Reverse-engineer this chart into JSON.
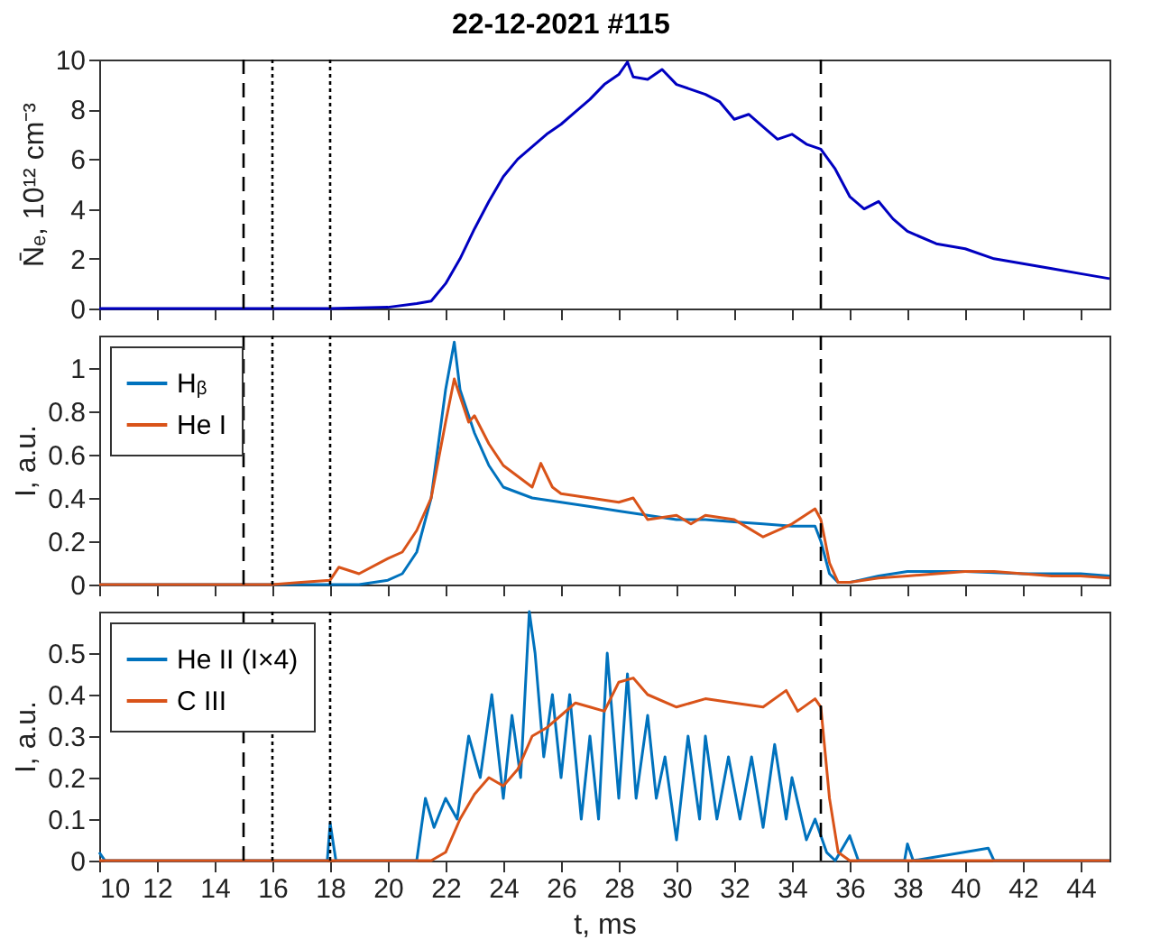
{
  "chart_data": [
    {
      "type": "line",
      "title": "22-12-2021 #115",
      "ylabel": "N̄ₑ, 10¹² cm⁻³",
      "xlim": [
        10,
        45
      ],
      "xticks": [
        10,
        12,
        14,
        16,
        18,
        20,
        22,
        24,
        26,
        28,
        30,
        32,
        34,
        36,
        38,
        40,
        42,
        44
      ],
      "ylim": [
        0,
        10
      ],
      "yticks": [
        0,
        2,
        4,
        6,
        8,
        10
      ],
      "grid": false,
      "legend": false,
      "tick_labels": "y",
      "line_style": "solid",
      "series": [
        {
          "color": "#0000c0",
          "x": [
            10,
            14,
            18,
            20,
            21,
            21.5,
            22,
            22.5,
            23,
            23.5,
            24,
            24.5,
            25,
            25.5,
            26,
            26.5,
            27,
            27.5,
            28,
            28.3,
            28.5,
            29,
            29.5,
            30,
            30.5,
            31,
            31.5,
            32,
            32.5,
            33,
            33.5,
            34,
            34.5,
            35,
            35.5,
            36,
            36.5,
            37,
            37.5,
            38,
            39,
            40,
            41,
            42,
            43,
            44,
            45
          ],
          "values": [
            0,
            0,
            0,
            0.05,
            0.2,
            0.3,
            1,
            2,
            3.2,
            4.3,
            5.3,
            6,
            6.5,
            7,
            7.4,
            7.9,
            8.4,
            9,
            9.4,
            9.9,
            9.3,
            9.2,
            9.6,
            9,
            8.8,
            8.6,
            8.3,
            7.6,
            7.8,
            7.3,
            6.8,
            7,
            6.6,
            6.4,
            5.6,
            4.5,
            4,
            4.3,
            3.6,
            3.1,
            2.6,
            2.4,
            2,
            1.8,
            1.6,
            1.4,
            1.2
          ]
        }
      ],
      "ref_lines": [
        {
          "axis": "x",
          "value": 15,
          "line_style": "dashed",
          "color": "#000000"
        },
        {
          "axis": "x",
          "value": 16,
          "line_style": "dotted",
          "color": "#000000"
        },
        {
          "axis": "x",
          "value": 18,
          "line_style": "dotted",
          "color": "#000000"
        },
        {
          "axis": "x",
          "value": 35,
          "line_style": "dashed",
          "color": "#000000"
        }
      ]
    },
    {
      "type": "line",
      "ylabel": "I, a.u.",
      "xlim": [
        10,
        45
      ],
      "xticks": [
        10,
        12,
        14,
        16,
        18,
        20,
        22,
        24,
        26,
        28,
        30,
        32,
        34,
        36,
        38,
        40,
        42,
        44
      ],
      "ylim": [
        0,
        1.15
      ],
      "yticks": [
        0,
        0.2,
        0.4,
        0.6,
        0.8,
        1
      ],
      "grid": false,
      "legend": "top left",
      "tick_labels": "y",
      "line_style": "solid",
      "series": [
        {
          "name": "Hᵦ",
          "color": "#0072bd",
          "x": [
            10,
            19,
            20,
            20.5,
            21,
            21.5,
            22,
            22.3,
            22.5,
            23,
            23.5,
            24,
            25,
            26,
            27,
            28,
            29,
            30,
            31,
            32,
            33,
            34,
            34.8,
            35,
            35.3,
            35.6,
            36,
            37,
            38,
            39,
            40,
            42,
            44,
            45
          ],
          "values": [
            0,
            0,
            0.02,
            0.05,
            0.15,
            0.4,
            0.9,
            1.12,
            0.9,
            0.7,
            0.55,
            0.45,
            0.4,
            0.38,
            0.36,
            0.34,
            0.32,
            0.3,
            0.3,
            0.29,
            0.28,
            0.27,
            0.27,
            0.2,
            0.05,
            0.01,
            0.01,
            0.04,
            0.06,
            0.06,
            0.06,
            0.05,
            0.05,
            0.04
          ]
        },
        {
          "name": "He I",
          "color": "#d95319",
          "x": [
            10,
            16,
            17,
            18,
            18.3,
            19,
            20,
            20.5,
            21,
            21.5,
            22,
            22.3,
            22.8,
            23,
            23.5,
            24,
            24.5,
            25,
            25.3,
            25.7,
            26,
            27,
            28,
            28.5,
            29,
            30,
            30.5,
            31,
            32,
            32.5,
            33,
            34,
            34.8,
            35,
            35.3,
            35.6,
            36,
            37,
            38,
            39,
            40,
            41,
            42,
            43,
            44,
            45
          ],
          "values": [
            0,
            0,
            0.01,
            0.02,
            0.08,
            0.05,
            0.12,
            0.15,
            0.25,
            0.4,
            0.75,
            0.95,
            0.75,
            0.78,
            0.65,
            0.55,
            0.5,
            0.45,
            0.56,
            0.45,
            0.42,
            0.4,
            0.38,
            0.4,
            0.3,
            0.32,
            0.28,
            0.32,
            0.3,
            0.26,
            0.22,
            0.28,
            0.35,
            0.3,
            0.1,
            0.01,
            0.01,
            0.03,
            0.04,
            0.05,
            0.06,
            0.06,
            0.05,
            0.04,
            0.04,
            0.03
          ]
        }
      ],
      "ref_lines": [
        {
          "axis": "x",
          "value": 15,
          "line_style": "dashed",
          "color": "#000000"
        },
        {
          "axis": "x",
          "value": 16,
          "line_style": "dotted",
          "color": "#000000"
        },
        {
          "axis": "x",
          "value": 18,
          "line_style": "dotted",
          "color": "#000000"
        },
        {
          "axis": "x",
          "value": 35,
          "line_style": "dashed",
          "color": "#000000"
        }
      ]
    },
    {
      "type": "line",
      "xlabel": "t, ms",
      "ylabel": "I, a.u.",
      "xlim": [
        10,
        45
      ],
      "xticks": [
        10,
        12,
        14,
        16,
        18,
        20,
        22,
        24,
        26,
        28,
        30,
        32,
        34,
        36,
        38,
        40,
        42,
        44
      ],
      "ylim": [
        0,
        0.6
      ],
      "yticks": [
        0,
        0.1,
        0.2,
        0.3,
        0.4,
        0.5
      ],
      "grid": false,
      "legend": "top left",
      "line_style": "solid",
      "series": [
        {
          "name": "He II (I×4)",
          "color": "#0072bd",
          "x": [
            10,
            10.2,
            16,
            17.9,
            18,
            18.2,
            21,
            21.3,
            21.6,
            22,
            22.4,
            22.8,
            23.2,
            23.6,
            24,
            24.3,
            24.6,
            24.9,
            25.1,
            25.4,
            25.7,
            26,
            26.3,
            26.7,
            27,
            27.3,
            27.6,
            28,
            28.3,
            28.6,
            29,
            29.3,
            29.6,
            30,
            30.4,
            30.8,
            31,
            31.4,
            31.8,
            32.2,
            32.6,
            33,
            33.4,
            33.8,
            34,
            34.5,
            34.8,
            35.2,
            35.5,
            36,
            36.3,
            37.9,
            38,
            38.2,
            40.8,
            41,
            45
          ],
          "values": [
            0.02,
            0,
            0,
            0,
            0.09,
            0,
            0,
            0.15,
            0.08,
            0.15,
            0.1,
            0.3,
            0.2,
            0.4,
            0.15,
            0.35,
            0.2,
            0.6,
            0.5,
            0.25,
            0.4,
            0.2,
            0.4,
            0.1,
            0.3,
            0.1,
            0.5,
            0.15,
            0.45,
            0.15,
            0.35,
            0.15,
            0.25,
            0.05,
            0.3,
            0.1,
            0.3,
            0.1,
            0.25,
            0.1,
            0.25,
            0.08,
            0.28,
            0.1,
            0.2,
            0.05,
            0.1,
            0.02,
            0,
            0.06,
            0,
            0,
            0.04,
            0,
            0.03,
            0,
            0
          ]
        },
        {
          "name": "C III",
          "color": "#d95319",
          "x": [
            10,
            21.5,
            22,
            22.5,
            23,
            23.5,
            24,
            24.5,
            25,
            25.5,
            26,
            26.5,
            27,
            27.5,
            28,
            28.5,
            29,
            30,
            31,
            32,
            33,
            33.8,
            34.2,
            34.8,
            35,
            35.3,
            35.6,
            36,
            45
          ],
          "values": [
            0,
            0,
            0.02,
            0.1,
            0.16,
            0.2,
            0.18,
            0.22,
            0.3,
            0.32,
            0.35,
            0.38,
            0.37,
            0.36,
            0.43,
            0.44,
            0.4,
            0.37,
            0.39,
            0.38,
            0.37,
            0.41,
            0.36,
            0.39,
            0.37,
            0.15,
            0.02,
            0,
            0
          ]
        }
      ],
      "ref_lines": [
        {
          "axis": "x",
          "value": 15,
          "line_style": "dashed",
          "color": "#000000"
        },
        {
          "axis": "x",
          "value": 16,
          "line_style": "dotted",
          "color": "#000000"
        },
        {
          "axis": "x",
          "value": 18,
          "line_style": "dotted",
          "color": "#000000"
        },
        {
          "axis": "x",
          "value": 35,
          "line_style": "dashed",
          "color": "#000000"
        }
      ]
    }
  ]
}
